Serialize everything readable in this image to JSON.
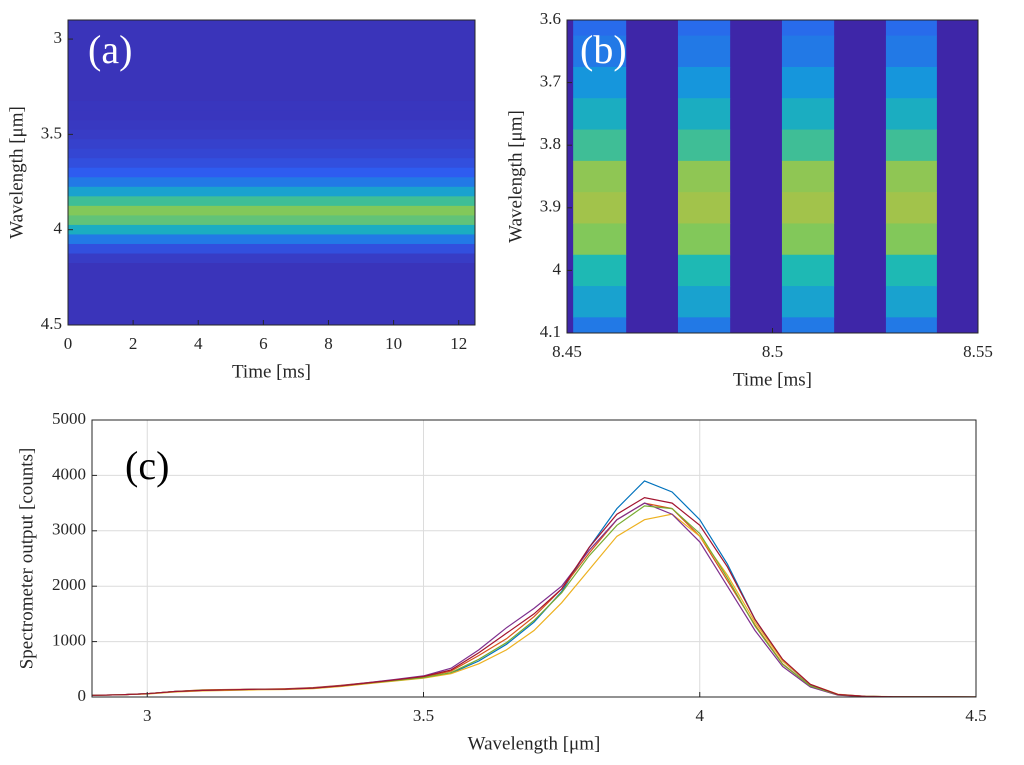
{
  "chart_data": [
    {
      "type": "heatmap",
      "annotation": "(a)",
      "xlabel": "Time [ms]",
      "ylabel": "Wavelength [μm]",
      "xlim": [
        0,
        12.5
      ],
      "xticks": [
        0,
        2,
        4,
        6,
        8,
        10,
        12
      ],
      "ylim": [
        2.9,
        4.5
      ],
      "yticks": [
        3,
        3.5,
        4,
        4.5
      ],
      "yreverse": true,
      "wavelengths": [
        2.9,
        2.95,
        3.0,
        3.05,
        3.1,
        3.15,
        3.2,
        3.25,
        3.3,
        3.35,
        3.4,
        3.45,
        3.5,
        3.55,
        3.6,
        3.65,
        3.7,
        3.75,
        3.8,
        3.85,
        3.9,
        3.95,
        4.0,
        4.05,
        4.1,
        4.15,
        4.2,
        4.25,
        4.3,
        4.35,
        4.4,
        4.45,
        4.5
      ],
      "intensity": [
        0.05,
        0.05,
        0.05,
        0.05,
        0.05,
        0.05,
        0.05,
        0.05,
        0.05,
        0.06,
        0.06,
        0.07,
        0.08,
        0.1,
        0.12,
        0.15,
        0.2,
        0.3,
        0.45,
        0.6,
        0.7,
        0.65,
        0.5,
        0.3,
        0.15,
        0.08,
        0.05,
        0.05,
        0.05,
        0.05,
        0.05,
        0.05,
        0.05
      ]
    },
    {
      "type": "pulses",
      "annotation": "(b)",
      "xlabel": "Time [ms]",
      "ylabel": "Wavelength [μm]",
      "xlim": [
        8.45,
        8.55
      ],
      "xticks": [
        8.45,
        8.5,
        8.55
      ],
      "ylim": [
        3.6,
        4.1
      ],
      "yticks": [
        3.6,
        3.7,
        3.8,
        3.9,
        4,
        4.1
      ],
      "yreverse": true,
      "pulse_start": [
        8.4515,
        8.477,
        8.5023,
        8.5276
      ],
      "pulse_end": [
        8.4644,
        8.4897,
        8.515,
        8.54
      ],
      "wavelengths": [
        3.6,
        3.65,
        3.7,
        3.75,
        3.8,
        3.85,
        3.9,
        3.95,
        4.0,
        4.05,
        4.1
      ],
      "intensity": [
        0.25,
        0.3,
        0.4,
        0.5,
        0.6,
        0.72,
        0.75,
        0.7,
        0.55,
        0.45,
        0.3
      ]
    },
    {
      "type": "line",
      "annotation": "(c)",
      "xlabel": "Wavelength [μm]",
      "ylabel": "Spectrometer output [counts]",
      "xlim": [
        2.9,
        4.5
      ],
      "xticks": [
        3,
        3.5,
        4,
        4.5
      ],
      "ylim": [
        0,
        5000
      ],
      "yticks": [
        0,
        1000,
        2000,
        3000,
        4000,
        5000
      ],
      "grid": true,
      "x": [
        2.9,
        2.95,
        3.0,
        3.05,
        3.1,
        3.15,
        3.2,
        3.25,
        3.3,
        3.35,
        3.4,
        3.45,
        3.5,
        3.55,
        3.6,
        3.65,
        3.7,
        3.75,
        3.8,
        3.85,
        3.9,
        3.95,
        4.0,
        4.05,
        4.1,
        4.15,
        4.2,
        4.25,
        4.3,
        4.35,
        4.4,
        4.45,
        4.5
      ],
      "series": [
        {
          "color": "#0072bd",
          "values": [
            30,
            40,
            60,
            100,
            120,
            130,
            140,
            140,
            160,
            200,
            250,
            300,
            350,
            430,
            650,
            950,
            1350,
            1900,
            2700,
            3400,
            3900,
            3700,
            3200,
            2400,
            1400,
            650,
            220,
            45,
            10,
            5,
            2,
            1,
            0
          ]
        },
        {
          "color": "#d95319",
          "values": [
            30,
            40,
            60,
            100,
            130,
            135,
            140,
            150,
            170,
            210,
            260,
            310,
            360,
            470,
            750,
            1050,
            1450,
            1950,
            2600,
            3200,
            3500,
            3400,
            2900,
            2100,
            1300,
            600,
            200,
            40,
            10,
            5,
            2,
            1,
            0
          ]
        },
        {
          "color": "#edb120",
          "values": [
            30,
            40,
            55,
            90,
            110,
            120,
            130,
            135,
            150,
            190,
            240,
            290,
            340,
            420,
            600,
            850,
            1200,
            1700,
            2300,
            2900,
            3200,
            3300,
            2900,
            2200,
            1350,
            650,
            230,
            50,
            12,
            5,
            2,
            1,
            0
          ]
        },
        {
          "color": "#7e2f8e",
          "values": [
            30,
            40,
            60,
            100,
            120,
            130,
            140,
            145,
            165,
            205,
            260,
            320,
            380,
            520,
            850,
            1250,
            1600,
            2000,
            2650,
            3200,
            3500,
            3300,
            2800,
            2000,
            1200,
            550,
            180,
            35,
            8,
            4,
            2,
            1,
            0
          ]
        },
        {
          "color": "#77ac30",
          "values": [
            30,
            40,
            60,
            100,
            125,
            130,
            140,
            140,
            160,
            200,
            250,
            300,
            350,
            440,
            680,
            980,
            1380,
            1880,
            2550,
            3100,
            3450,
            3400,
            2950,
            2150,
            1280,
            590,
            200,
            40,
            10,
            5,
            2,
            1,
            0
          ]
        },
        {
          "color": "#a2142f",
          "values": [
            30,
            40,
            60,
            100,
            120,
            130,
            140,
            140,
            160,
            200,
            255,
            310,
            370,
            490,
            800,
            1150,
            1500,
            1950,
            2700,
            3300,
            3600,
            3500,
            3100,
            2350,
            1400,
            680,
            230,
            45,
            10,
            5,
            2,
            1,
            0
          ]
        }
      ]
    }
  ]
}
